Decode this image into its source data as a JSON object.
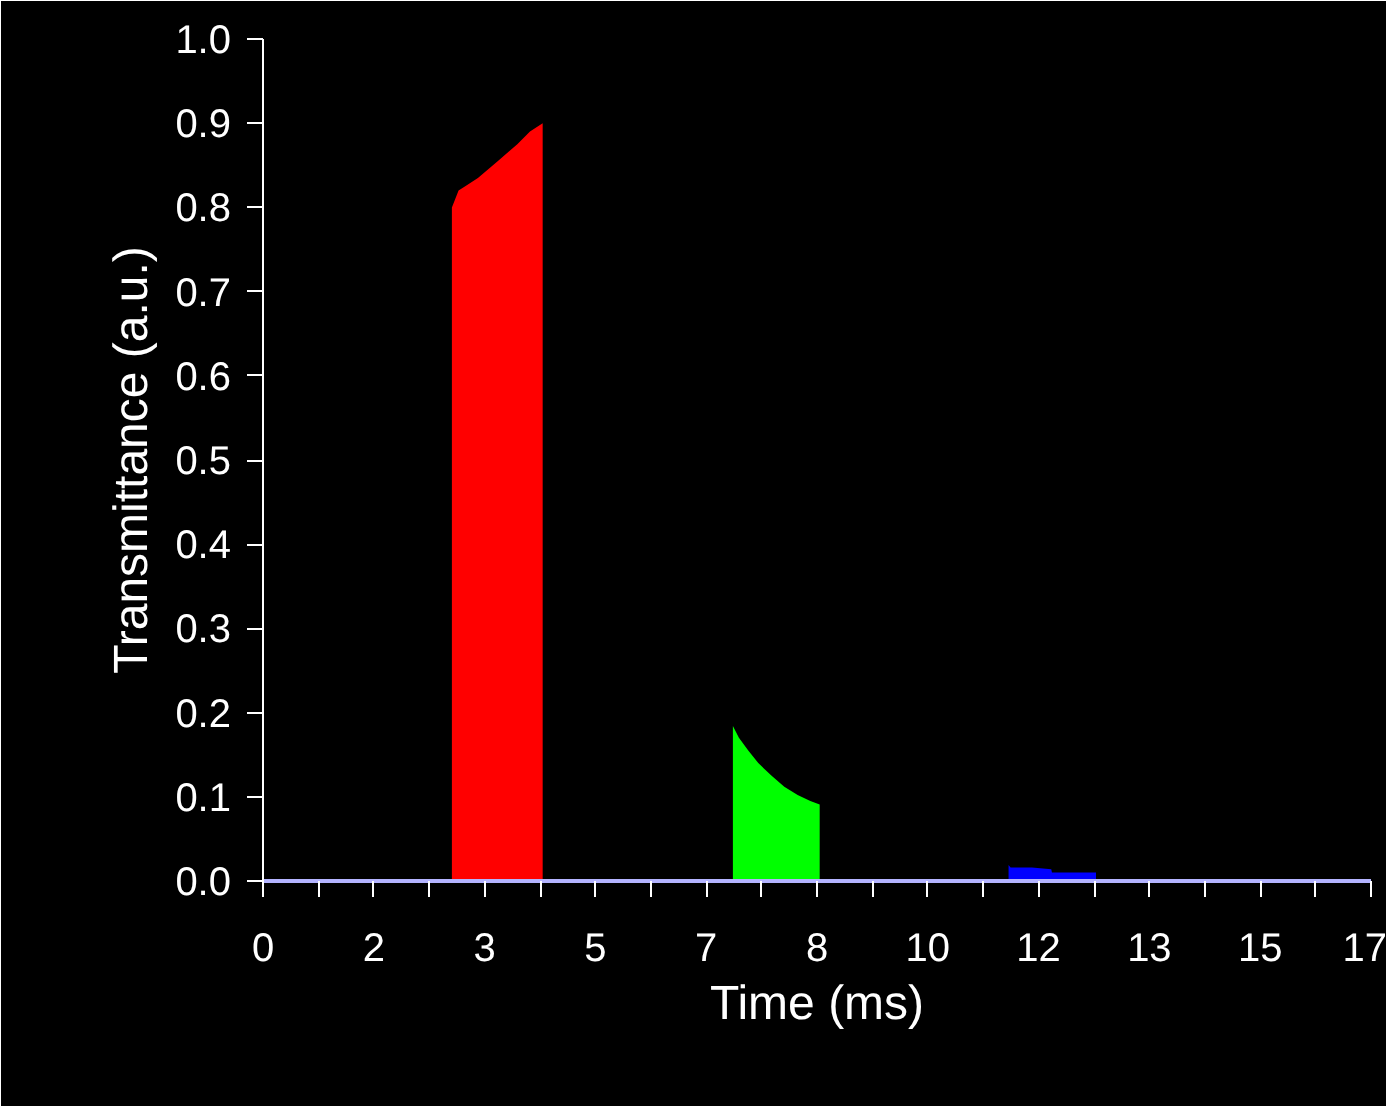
{
  "chart_data": {
    "type": "area",
    "xlabel": "Time (ms)",
    "ylabel": "Transmittance (a.u.)",
    "xlim": [
      0,
      16.6
    ],
    "ylim": [
      0,
      1.0
    ],
    "xticks": [
      0,
      {
        "value": 0.83,
        "label": null
      },
      {
        "value": 1.66,
        "label": "2"
      },
      {
        "value": 2.49,
        "label": null
      },
      {
        "value": 3.32,
        "label": "3"
      },
      {
        "value": 4.15,
        "label": null
      },
      {
        "value": 4.98,
        "label": "5"
      },
      {
        "value": 5.81,
        "label": null
      },
      {
        "value": 6.64,
        "label": "7"
      },
      {
        "value": 7.47,
        "label": null
      },
      {
        "value": 8.3,
        "label": "8"
      },
      {
        "value": 9.13,
        "label": null
      },
      {
        "value": 9.96,
        "label": "10"
      },
      {
        "value": 10.79,
        "label": null
      },
      {
        "value": 11.62,
        "label": "12"
      },
      {
        "value": 12.45,
        "label": null
      },
      {
        "value": 13.28,
        "label": "13"
      },
      {
        "value": 14.11,
        "label": null
      },
      {
        "value": 14.94,
        "label": "15"
      },
      {
        "value": 15.77,
        "label": null
      },
      {
        "value": 16.6,
        "label": "17"
      }
    ],
    "yticks": [
      {
        "value": 0,
        "label": "0.0"
      },
      0.1,
      0.2,
      0.3,
      0.4,
      0.5,
      0.6,
      0.7,
      0.8,
      0.9,
      {
        "value": 1.0,
        "label": "1.0"
      }
    ],
    "grid": false,
    "series": [
      {
        "color": "#ff0000",
        "x": [
          2.83,
          2.88,
          2.93,
          3.03,
          3.22,
          3.52,
          3.81,
          4.0,
          4.19
        ],
        "values": [
          0.8,
          0.81,
          0.82,
          0.825,
          0.835,
          0.855,
          0.875,
          0.89,
          0.9
        ]
      },
      {
        "color": "#00ff00",
        "x": [
          7.04,
          7.13,
          7.27,
          7.42,
          7.62,
          7.81,
          8.01,
          8.2,
          8.34
        ],
        "values": [
          0.184,
          0.17,
          0.155,
          0.14,
          0.125,
          0.112,
          0.102,
          0.095,
          0.091
        ]
      },
      {
        "color": "#0000ff",
        "x": [
          11.17,
          11.2,
          11.52,
          11.81,
          11.82,
          12.48
        ],
        "values": [
          0.019,
          0.016,
          0.016,
          0.014,
          0.01,
          0.01
        ]
      }
    ]
  }
}
